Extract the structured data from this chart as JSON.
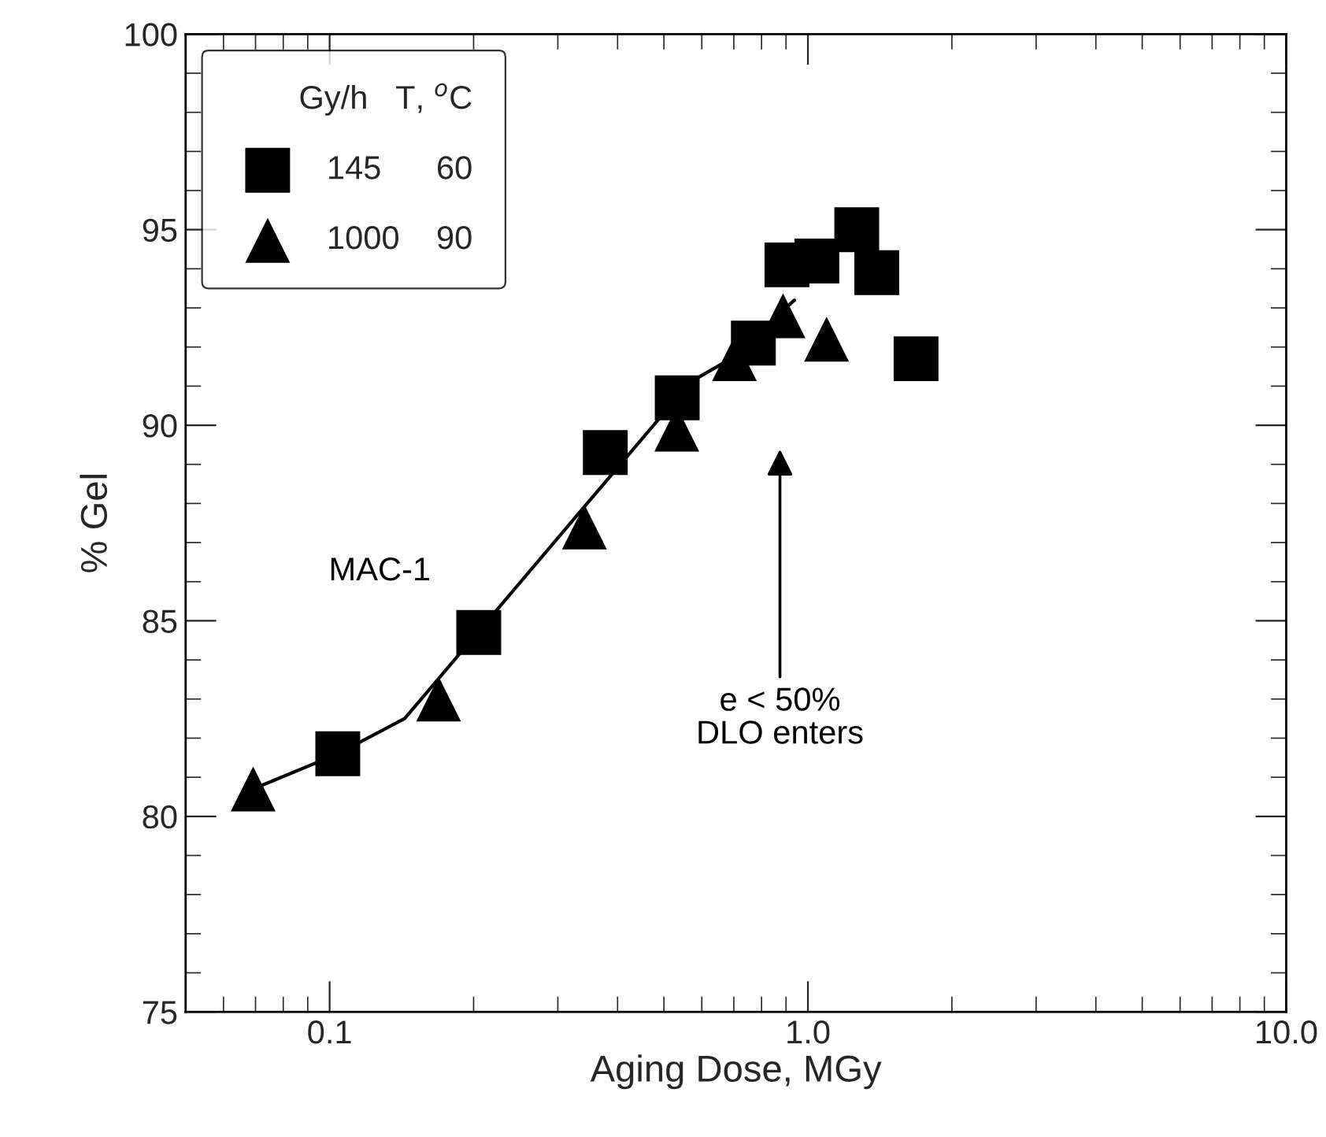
{
  "chart_data": {
    "type": "scatter",
    "xlabel": "Aging Dose, MGy",
    "ylabel": "% Gel",
    "log": "x",
    "xlim": [
      0.05,
      10
    ],
    "xticks": [
      {
        "value": 0.1,
        "label": "0.1"
      },
      {
        "value": 1,
        "label": "1.0"
      },
      {
        "value": 10,
        "label": "10.0"
      }
    ],
    "ylim": [
      75,
      100
    ],
    "yticks": [
      75,
      80,
      85,
      90,
      95,
      100
    ],
    "grid": false,
    "legend": "top left",
    "legend_title": "Gy/h   T, $^{o}$C",
    "series": [
      {
        "name": "145      60",
        "color": "#000000",
        "marker": "square",
        "x": [
          0.104,
          0.205,
          0.377,
          0.533,
          0.769,
          0.904,
          1.044,
          1.265,
          1.393,
          1.683
        ],
        "values": [
          81.6,
          84.7,
          89.3,
          90.7,
          92.1,
          94.1,
          94.2,
          95.0,
          93.9,
          91.7
        ]
      },
      {
        "name": "1000    90",
        "color": "#000000",
        "marker": "triangle",
        "x": [
          0.0692,
          0.169,
          0.341,
          0.532,
          0.702,
          0.887,
          1.094
        ],
        "values": [
          80.7,
          83.0,
          87.4,
          89.9,
          91.7,
          92.8,
          92.2
        ]
      },
      {
        "type": "line",
        "color": "#000000",
        "marker": "none",
        "line_style": "solid",
        "x": [
          0.0692,
          0.104,
          0.1435,
          0.567,
          0.69,
          0.937
        ],
        "values": [
          80.7,
          81.6,
          82.5,
          91.1,
          91.7,
          93.2
        ]
      }
    ],
    "annotations": [
      "e < 50%\nDLO enters",
      "MAC-1"
    ]
  }
}
